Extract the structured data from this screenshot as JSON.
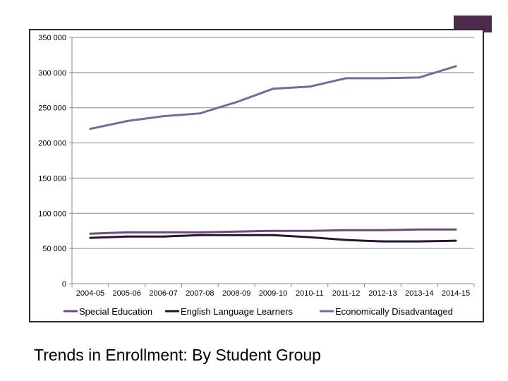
{
  "colors": {
    "special_education": "#6b4c7a",
    "english_language_learners": "#2a1230",
    "economically_disadvantaged": "#6d6f9a",
    "grid": "#8c8c8c",
    "frame": "#2b2b2b",
    "accent": "#4b2a4a"
  },
  "caption": "Trends in Enrollment:  By Student Group",
  "chart_data": {
    "type": "line",
    "categories": [
      "2004-05",
      "2005-06",
      "2006-07",
      "2007-08",
      "2008-09",
      "2009-10",
      "2010-11",
      "2011-12",
      "2012-13",
      "2013-14",
      "2014-15"
    ],
    "ylim": [
      0,
      350000
    ],
    "yticks": [
      0,
      50000,
      100000,
      150000,
      200000,
      250000,
      300000,
      350000
    ],
    "ytick_labels": [
      "0",
      "50 000",
      "100 000",
      "150 000",
      "200 000",
      "250 000",
      "300 000",
      "350 000"
    ],
    "grid": true,
    "legend_position": "bottom",
    "series": [
      {
        "name": "Special Education",
        "color": "#6b4c7a",
        "values": [
          71000,
          73000,
          73000,
          73000,
          74000,
          75000,
          75000,
          76000,
          76000,
          77000,
          77000
        ]
      },
      {
        "name": "English Language Learners",
        "color": "#2a1230",
        "values": [
          65000,
          67000,
          67000,
          69000,
          69000,
          69000,
          66000,
          62000,
          60000,
          60000,
          61000
        ]
      },
      {
        "name": "Economically Disadvantaged",
        "color": "#6d6f9a",
        "values": [
          220000,
          231000,
          238000,
          242000,
          258000,
          277000,
          280000,
          292000,
          292000,
          293000,
          309000
        ]
      }
    ]
  }
}
